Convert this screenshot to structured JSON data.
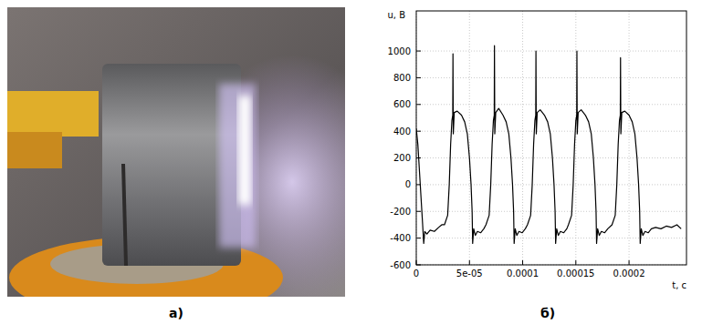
{
  "panel_labels": [
    "а)",
    "б)"
  ],
  "chart_data": {
    "type": "line",
    "x_label": "t, с",
    "y_label": "u, В",
    "color": "#000000",
    "grid": true,
    "xlim": [
      0,
      0.000254
    ],
    "ylim": [
      -600,
      1300
    ],
    "xticks": [
      0,
      {
        "value": 5e-05,
        "label": "5e-05"
      },
      {
        "value": 0.0001,
        "label": "0.0001"
      },
      {
        "value": 0.00015,
        "label": "0.00015"
      },
      {
        "value": 0.0002,
        "label": "0.0002"
      }
    ],
    "yticks": [
      -600,
      -400,
      -200,
      0,
      200,
      400,
      600,
      800,
      1000
    ],
    "x": [
      0,
      1.5e-06,
      3e-06,
      4.5e-06,
      6e-06,
      7e-06,
      8e-06,
      1e-05,
      1.3e-05,
      1.7e-05,
      2.1e-05,
      2.4e-05,
      2.65e-05,
      2.95e-05,
      3.1e-05,
      3.23e-05,
      3.35e-05,
      3.43e-05,
      3.45e-05,
      3.48e-05,
      3.57e-05,
      3.85e-05,
      4.25e-05,
      4.55e-05,
      4.8e-05,
      5e-05,
      5.15e-05,
      5.25e-05,
      5.3e-05,
      5.4e-05,
      5.55e-05,
      5.75e-05,
      6.05e-05,
      6.35e-05,
      6.55e-05,
      6.85e-05,
      7e-05,
      7.13e-05,
      7.25e-05,
      7.33e-05,
      7.35e-05,
      7.38e-05,
      7.47e-05,
      7.75e-05,
      8.15e-05,
      8.45e-05,
      8.7e-05,
      8.9e-05,
      9.05e-05,
      9.15e-05,
      9.2e-05,
      9.3e-05,
      9.45e-05,
      9.65e-05,
      9.95e-05,
      0.0001025,
      0.0001045,
      0.0001075,
      0.000109,
      0.0001103,
      0.0001115,
      0.0001123,
      0.0001125,
      0.0001128,
      0.0001137,
      0.0001165,
      0.0001205,
      0.0001235,
      0.000126,
      0.000128,
      0.0001295,
      0.0001305,
      0.000131,
      0.000132,
      0.0001335,
      0.0001355,
      0.0001385,
      0.0001415,
      0.000143,
      0.000146,
      0.0001475,
      0.0001488,
      0.00015,
      0.0001508,
      0.000151,
      0.0001513,
      0.0001522,
      0.000155,
      0.000159,
      0.000162,
      0.0001645,
      0.0001665,
      0.000168,
      0.000169,
      0.0001695,
      0.0001705,
      0.000172,
      0.000174,
      0.000177,
      0.00018,
      0.000184,
      0.000187,
      0.0001885,
      0.0001898,
      0.000191,
      0.0001918,
      0.000192,
      0.0001923,
      0.0001932,
      0.000196,
      0.0002,
      0.000203,
      0.0002055,
      0.0002075,
      0.000209,
      0.00021,
      0.0002105,
      0.0002115,
      0.000213,
      0.000215,
      0.000218,
      0.000221,
      0.000225,
      0.00023,
      0.000235,
      0.00024,
      0.000245,
      0.000249
    ],
    "values": [
      420,
      300,
      100,
      -100,
      -300,
      -440,
      -350,
      -370,
      -340,
      -350,
      -320,
      -300,
      -300,
      -230,
      0,
      300,
      480,
      520,
      980,
      380,
      540,
      550,
      520,
      470,
      380,
      200,
      0,
      -200,
      -440,
      -330,
      -380,
      -350,
      -360,
      -330,
      -300,
      -230,
      0,
      300,
      480,
      520,
      1040,
      380,
      540,
      570,
      520,
      470,
      380,
      200,
      0,
      -200,
      -440,
      -330,
      -380,
      -350,
      -360,
      -330,
      -300,
      -230,
      0,
      300,
      480,
      520,
      1000,
      380,
      540,
      560,
      520,
      470,
      380,
      200,
      0,
      -200,
      -440,
      -330,
      -380,
      -350,
      -360,
      -330,
      -300,
      -230,
      0,
      300,
      480,
      520,
      1000,
      380,
      540,
      560,
      520,
      470,
      380,
      200,
      0,
      -200,
      -440,
      -330,
      -380,
      -350,
      -360,
      -330,
      -300,
      -230,
      0,
      300,
      480,
      520,
      950,
      380,
      540,
      550,
      520,
      470,
      380,
      200,
      0,
      -200,
      -440,
      -330,
      -380,
      -350,
      -360,
      -330,
      -320,
      -330,
      -310,
      -320,
      -300,
      -330
    ]
  }
}
